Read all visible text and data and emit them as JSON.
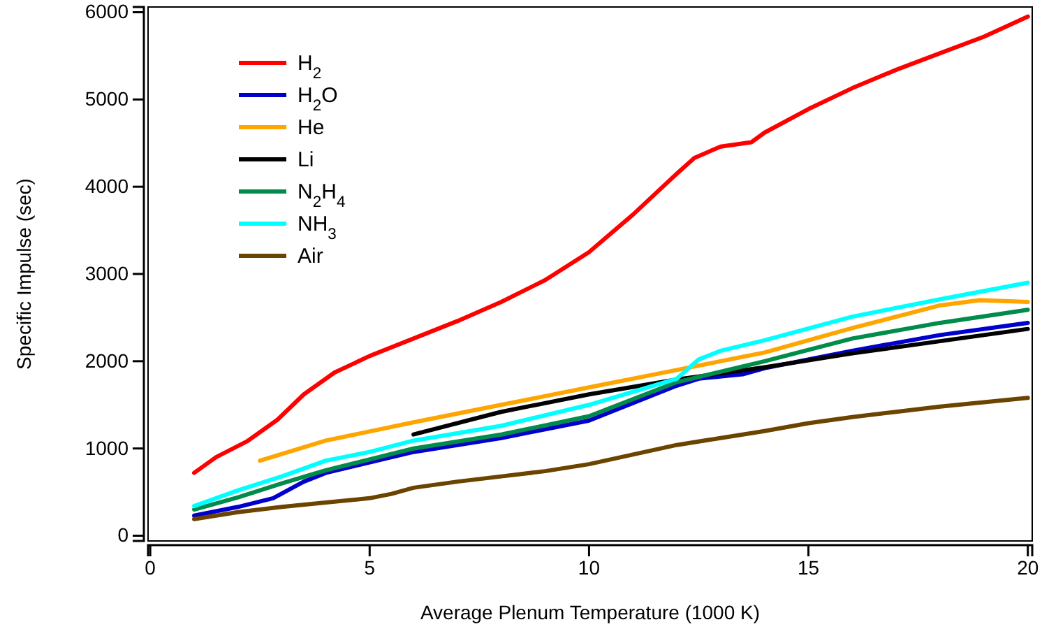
{
  "chart_data": {
    "type": "line",
    "xlabel": "Average Plenum Temperature (1000 K)",
    "ylabel": "Specific Impulse (sec)",
    "xlim": [
      -0.05,
      20.1
    ],
    "ylim": [
      -60,
      6060
    ],
    "xticks": [
      0,
      5,
      10,
      15,
      20
    ],
    "yticks": [
      0,
      1000,
      2000,
      3000,
      4000,
      5000,
      6000
    ],
    "grid": false,
    "legend": "top left",
    "marker": "none",
    "line_style": "solid",
    "series": [
      {
        "name": "H$_{2}$",
        "color": "#ff0000",
        "x": [
          1,
          1.5,
          2.2,
          2.9,
          3.5,
          4.2,
          5,
          6,
          7,
          8,
          9,
          10,
          11,
          12,
          12.4,
          13,
          13.7,
          14,
          15,
          16,
          17,
          18,
          19,
          20
        ],
        "values": [
          720,
          900,
          1080,
          1330,
          1620,
          1870,
          2060,
          2260,
          2460,
          2680,
          2930,
          3250,
          3680,
          4150,
          4330,
          4460,
          4510,
          4620,
          4890,
          5130,
          5340,
          5530,
          5720,
          5950
        ]
      },
      {
        "name": "H$_{2}$O",
        "color": "#0000cc",
        "x": [
          1,
          2,
          2.8,
          3.5,
          4,
          6,
          8,
          10,
          12,
          12.5,
          13.5,
          14,
          16,
          18,
          20
        ],
        "values": [
          230,
          330,
          430,
          620,
          720,
          960,
          1120,
          1320,
          1720,
          1800,
          1850,
          1920,
          2120,
          2300,
          2440
        ]
      },
      {
        "name": "He",
        "color": "#ffa500",
        "x": [
          2.5,
          4,
          6,
          8,
          10,
          12,
          14,
          16,
          18,
          18.9,
          20
        ],
        "values": [
          860,
          1090,
          1300,
          1500,
          1700,
          1900,
          2100,
          2380,
          2640,
          2700,
          2680
        ]
      },
      {
        "name": "Li",
        "color": "#000000",
        "x": [
          6,
          8,
          10,
          12,
          14,
          16,
          18,
          20
        ],
        "values": [
          1160,
          1420,
          1620,
          1790,
          1930,
          2090,
          2230,
          2370
        ]
      },
      {
        "name": "N$_{2}$H$_{4}$",
        "color": "#008c4a",
        "x": [
          1,
          2,
          3,
          4,
          6,
          8,
          10,
          12,
          14,
          16,
          18,
          20
        ],
        "values": [
          300,
          440,
          600,
          750,
          1000,
          1160,
          1370,
          1760,
          2000,
          2260,
          2440,
          2590
        ]
      },
      {
        "name": "NH$_{3}$",
        "color": "#00ffff",
        "x": [
          1,
          2,
          3,
          4,
          5,
          6,
          8,
          10,
          12,
          12.5,
          13,
          14,
          16,
          18,
          20
        ],
        "values": [
          340,
          520,
          680,
          860,
          960,
          1090,
          1260,
          1500,
          1800,
          2020,
          2120,
          2240,
          2510,
          2710,
          2900
        ]
      },
      {
        "name": "Air",
        "color": "#6b4400",
        "x": [
          1,
          2,
          3,
          4,
          5,
          5.5,
          6,
          7,
          8,
          9,
          10,
          11,
          12,
          13,
          14,
          15,
          16,
          17,
          18,
          19,
          20
        ],
        "values": [
          190,
          270,
          330,
          380,
          430,
          480,
          550,
          620,
          680,
          740,
          820,
          930,
          1040,
          1120,
          1200,
          1290,
          1360,
          1420,
          1480,
          1530,
          1580
        ]
      }
    ]
  }
}
